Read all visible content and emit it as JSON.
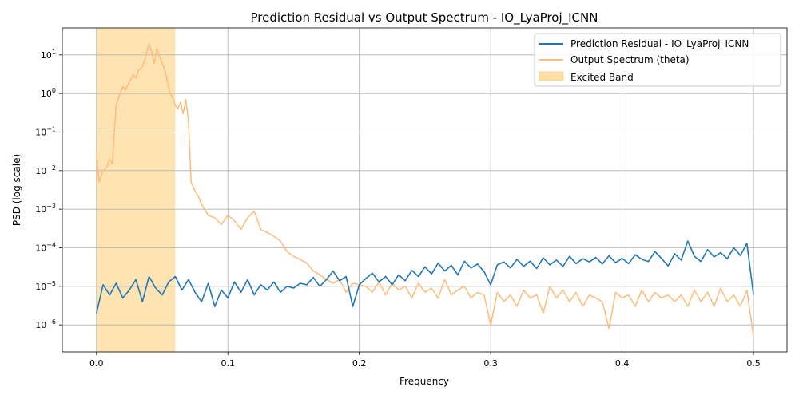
{
  "chart_data": {
    "type": "line",
    "title": "Prediction Residual vs Output Spectrum - IO_LyaProj_ICNN",
    "xlabel": "Frequency",
    "ylabel": "PSD (log scale)",
    "xlim": [
      -0.026,
      0.5255
    ],
    "ylim_log10": [
      -6.7,
      1.7
    ],
    "yscale": "log",
    "grid": true,
    "legend_position": "upper-right",
    "x_ticks": [
      {
        "value": 0.0,
        "label": "0.0"
      },
      {
        "value": 0.1,
        "label": "0.1"
      },
      {
        "value": 0.2,
        "label": "0.2"
      },
      {
        "value": 0.3,
        "label": "0.3"
      },
      {
        "value": 0.4,
        "label": "0.4"
      },
      {
        "value": 0.5,
        "label": "0.5"
      }
    ],
    "y_ticks": [
      {
        "exp": -6,
        "base": "10",
        "sup": "−6"
      },
      {
        "exp": -5,
        "base": "10",
        "sup": "−5"
      },
      {
        "exp": -4,
        "base": "10",
        "sup": "−4"
      },
      {
        "exp": -3,
        "base": "10",
        "sup": "−3"
      },
      {
        "exp": -2,
        "base": "10",
        "sup": "−2"
      },
      {
        "exp": -1,
        "base": "10",
        "sup": "−1"
      },
      {
        "exp": 0,
        "base": "10",
        "sup": "0"
      },
      {
        "exp": 1,
        "base": "10",
        "sup": "1"
      }
    ],
    "excited_band": {
      "label": "Excited Band",
      "x_range": [
        0.0,
        0.06
      ],
      "color": "#ffdfa6"
    },
    "series": [
      {
        "name": "Prediction Residual - IO_LyaProj_ICNN",
        "color": "#1f77b4",
        "x": [
          0.0,
          0.005,
          0.01,
          0.015,
          0.02,
          0.025,
          0.03,
          0.035,
          0.04,
          0.045,
          0.05,
          0.055,
          0.06,
          0.065,
          0.07,
          0.075,
          0.08,
          0.085,
          0.09,
          0.095,
          0.1,
          0.105,
          0.11,
          0.115,
          0.12,
          0.125,
          0.13,
          0.135,
          0.14,
          0.145,
          0.15,
          0.155,
          0.16,
          0.165,
          0.17,
          0.175,
          0.18,
          0.185,
          0.19,
          0.195,
          0.2,
          0.205,
          0.21,
          0.215,
          0.22,
          0.225,
          0.23,
          0.235,
          0.24,
          0.245,
          0.25,
          0.255,
          0.26,
          0.265,
          0.27,
          0.275,
          0.28,
          0.285,
          0.29,
          0.295,
          0.3,
          0.305,
          0.31,
          0.315,
          0.32,
          0.325,
          0.33,
          0.335,
          0.34,
          0.345,
          0.35,
          0.355,
          0.36,
          0.365,
          0.37,
          0.375,
          0.38,
          0.385,
          0.39,
          0.395,
          0.4,
          0.405,
          0.41,
          0.415,
          0.42,
          0.425,
          0.43,
          0.435,
          0.44,
          0.445,
          0.45,
          0.455,
          0.46,
          0.465,
          0.47,
          0.475,
          0.48,
          0.485,
          0.49,
          0.495,
          0.5
        ],
        "y": [
          2e-06,
          1.1e-05,
          6e-06,
          1.2e-05,
          5e-06,
          8e-06,
          1.5e-05,
          4e-06,
          1.8e-05,
          9e-06,
          6e-06,
          1.3e-05,
          1.8e-05,
          8e-06,
          1.5e-05,
          7e-06,
          4e-06,
          1.2e-05,
          3e-06,
          8e-06,
          5e-06,
          1.3e-05,
          7e-06,
          1.5e-05,
          6e-06,
          1.1e-05,
          8e-06,
          1.3e-05,
          7e-06,
          1e-05,
          9e-06,
          1.2e-05,
          1.1e-05,
          1.7e-05,
          1e-05,
          1.5e-05,
          2.5e-05,
          1.4e-05,
          1.8e-05,
          3e-06,
          1.1e-05,
          1.6e-05,
          2.2e-05,
          1.3e-05,
          1.8e-05,
          1.1e-05,
          2e-05,
          1.4e-05,
          2.6e-05,
          1.8e-05,
          3.2e-05,
          2.1e-05,
          4e-05,
          2.5e-05,
          3.5e-05,
          2e-05,
          4.5e-05,
          3e-05,
          3.8e-05,
          2.4e-05,
          1.1e-05,
          3.6e-05,
          4.3e-05,
          3e-05,
          5e-05,
          3.3e-05,
          4.5e-05,
          2.9e-05,
          5.5e-05,
          3.6e-05,
          4.8e-05,
          3.3e-05,
          6e-05,
          3.9e-05,
          5.2e-05,
          4.3e-05,
          5.6e-05,
          3.8e-05,
          6.2e-05,
          4.1e-05,
          5.3e-05,
          3.9e-05,
          6.6e-05,
          5e-05,
          4.4e-05,
          8e-05,
          5.3e-05,
          3.4e-05,
          7e-05,
          4.8e-05,
          0.00015,
          6e-05,
          4.4e-05,
          9e-05,
          5.8e-05,
          7.5e-05,
          5.2e-05,
          0.0001,
          6.3e-05,
          0.00013,
          6e-06
        ]
      },
      {
        "name": "Output Spectrum (theta)",
        "color": "#ffbb78",
        "x": [
          0.0,
          0.002,
          0.005,
          0.008,
          0.01,
          0.012,
          0.015,
          0.018,
          0.02,
          0.022,
          0.025,
          0.028,
          0.03,
          0.032,
          0.035,
          0.037,
          0.04,
          0.042,
          0.044,
          0.046,
          0.048,
          0.05,
          0.052,
          0.054,
          0.056,
          0.058,
          0.06,
          0.062,
          0.064,
          0.066,
          0.068,
          0.07,
          0.072,
          0.075,
          0.078,
          0.08,
          0.085,
          0.09,
          0.095,
          0.1,
          0.105,
          0.11,
          0.115,
          0.12,
          0.125,
          0.13,
          0.135,
          0.14,
          0.145,
          0.15,
          0.155,
          0.16,
          0.165,
          0.17,
          0.175,
          0.18,
          0.185,
          0.19,
          0.195,
          0.2,
          0.205,
          0.21,
          0.215,
          0.22,
          0.225,
          0.23,
          0.235,
          0.24,
          0.245,
          0.25,
          0.255,
          0.26,
          0.265,
          0.27,
          0.275,
          0.28,
          0.285,
          0.29,
          0.295,
          0.3,
          0.305,
          0.31,
          0.315,
          0.32,
          0.325,
          0.33,
          0.335,
          0.34,
          0.345,
          0.35,
          0.355,
          0.36,
          0.365,
          0.37,
          0.375,
          0.38,
          0.385,
          0.39,
          0.395,
          0.4,
          0.405,
          0.41,
          0.415,
          0.42,
          0.425,
          0.43,
          0.435,
          0.44,
          0.445,
          0.45,
          0.455,
          0.46,
          0.465,
          0.47,
          0.475,
          0.48,
          0.485,
          0.49,
          0.495,
          0.5
        ],
        "y": [
          0.03,
          0.005,
          0.01,
          0.012,
          0.02,
          0.015,
          0.5,
          1.0,
          1.5,
          1.2,
          2.0,
          3.0,
          2.5,
          4.0,
          5.0,
          8.0,
          20.0,
          12.0,
          6.0,
          15.0,
          9.0,
          6.0,
          4.0,
          2.0,
          1.0,
          0.8,
          0.5,
          0.4,
          0.6,
          0.3,
          0.7,
          0.2,
          0.005,
          0.003,
          0.002,
          0.0013,
          0.0007,
          0.0006,
          0.0004,
          0.0007,
          0.0005,
          0.0003,
          0.0006,
          0.0009,
          0.0003,
          0.00025,
          0.0002,
          0.00015,
          8e-05,
          6e-05,
          5e-05,
          4e-05,
          2.5e-05,
          2e-05,
          1.5e-05,
          1.2e-05,
          1.5e-05,
          7e-06,
          1.2e-05,
          1.1e-05,
          1e-05,
          7e-06,
          1.3e-05,
          6e-06,
          1.2e-05,
          8e-06,
          1e-05,
          5e-06,
          1.2e-05,
          7e-06,
          9e-06,
          5e-06,
          1.5e-05,
          6e-06,
          8e-06,
          1e-05,
          5e-06,
          7e-06,
          6e-06,
          1e-06,
          7e-06,
          4e-06,
          6e-06,
          3e-06,
          8e-06,
          5e-06,
          6e-06,
          2e-06,
          1e-05,
          5e-06,
          8e-06,
          4e-06,
          7e-06,
          3e-06,
          6e-06,
          5e-06,
          4e-06,
          8e-07,
          7e-06,
          5e-06,
          6e-06,
          3e-06,
          8e-06,
          4e-06,
          7e-06,
          5e-06,
          6e-06,
          4e-06,
          6e-06,
          3e-06,
          8e-06,
          4e-06,
          7e-06,
          3e-06,
          9e-06,
          4e-06,
          6e-06,
          3e-06,
          8e-06,
          5e-07
        ]
      }
    ]
  }
}
